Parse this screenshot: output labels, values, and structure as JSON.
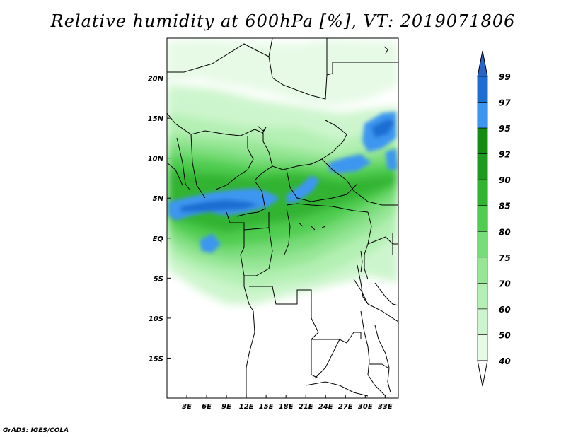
{
  "title": "Relative humidity at 600hPa [%], VT: 2019071806",
  "credit": "GrADS: IGES/COLA",
  "map": {
    "lon_range": [
      0,
      35
    ],
    "lat_range": [
      -20,
      25
    ],
    "lon_ticks": [
      {
        "value": 3,
        "label": "3E"
      },
      {
        "value": 6,
        "label": "6E"
      },
      {
        "value": 9,
        "label": "9E"
      },
      {
        "value": 12,
        "label": "12E"
      },
      {
        "value": 15,
        "label": "15E"
      },
      {
        "value": 18,
        "label": "18E"
      },
      {
        "value": 21,
        "label": "21E"
      },
      {
        "value": 24,
        "label": "24E"
      },
      {
        "value": 27,
        "label": "27E"
      },
      {
        "value": 30,
        "label": "30E"
      },
      {
        "value": 33,
        "label": "33E"
      }
    ],
    "lat_ticks": [
      {
        "value": 20,
        "label": "20N"
      },
      {
        "value": 15,
        "label": "15N"
      },
      {
        "value": 10,
        "label": "10N"
      },
      {
        "value": 5,
        "label": "5N"
      },
      {
        "value": 0,
        "label": "EQ"
      },
      {
        "value": -5,
        "label": "5S"
      },
      {
        "value": -10,
        "label": "10S"
      },
      {
        "value": -15,
        "label": "15S"
      }
    ]
  },
  "colorbar": {
    "levels": [
      {
        "label": "40",
        "color": "#ffffff"
      },
      {
        "label": "50",
        "color": "#e6fae6"
      },
      {
        "label": "60",
        "color": "#cdf5cd"
      },
      {
        "label": "70",
        "color": "#b4f0b4"
      },
      {
        "label": "75",
        "color": "#96e696"
      },
      {
        "label": "80",
        "color": "#78dc78"
      },
      {
        "label": "85",
        "color": "#50cd50"
      },
      {
        "label": "90",
        "color": "#32b432"
      },
      {
        "label": "92",
        "color": "#1e9b1e"
      },
      {
        "label": "95",
        "color": "#148c14"
      },
      {
        "label": "97",
        "color": "#3c96f0"
      },
      {
        "label": "99",
        "color": "#1e6ed2"
      }
    ],
    "top_color": "#2864c8",
    "bottom_color": "#ffffff"
  }
}
